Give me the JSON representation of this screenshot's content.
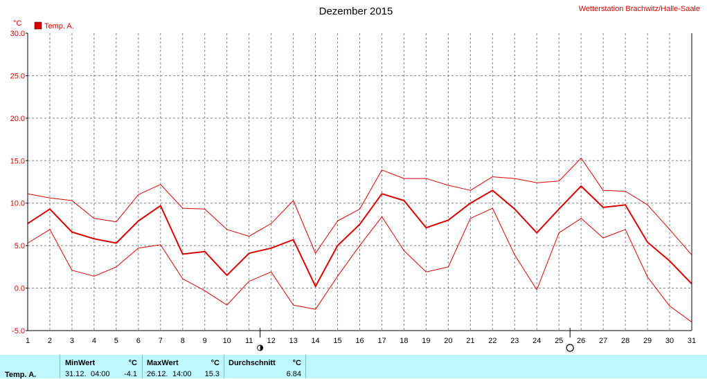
{
  "chart_data": {
    "type": "line",
    "title": "Dezember 2015",
    "station": "Wetterstation Brachwitz/Halle-Saale",
    "ylabel": "°C",
    "xlim": [
      1,
      31
    ],
    "ylim": [
      -5,
      30
    ],
    "y_ticks": [
      "30.0",
      "25.0",
      "20.0",
      "15.0",
      "10.0",
      "5.0",
      "0.0",
      "-5.0"
    ],
    "x_ticks": [
      "1",
      "2",
      "3",
      "4",
      "5",
      "6",
      "7",
      "8",
      "9",
      "10",
      "11",
      "12",
      "13",
      "14",
      "15",
      "16",
      "17",
      "18",
      "19",
      "20",
      "21",
      "22",
      "23",
      "24",
      "25",
      "26",
      "27",
      "28",
      "29",
      "30",
      "31"
    ],
    "grid": true,
    "legend": {
      "label": "Temp. A.",
      "position": "top-left"
    },
    "colors": {
      "series": "#dd0000",
      "footer_bg": "#bff7ff",
      "axis": "#000000",
      "grid": "#808080"
    },
    "moon_phases": [
      {
        "day": 11.5,
        "icon": "half-moon-icon"
      },
      {
        "day": 25.5,
        "icon": "full-moon-icon"
      }
    ],
    "series": [
      {
        "name": "Temp. A.",
        "role": "mean",
        "x": [
          1,
          2,
          3,
          4,
          5,
          6,
          7,
          8,
          9,
          10,
          11,
          12,
          13,
          14,
          15,
          16,
          17,
          18,
          19,
          20,
          21,
          22,
          23,
          24,
          25,
          26,
          27,
          28,
          29,
          30,
          31
        ],
        "values": [
          7.6,
          9.3,
          6.6,
          5.8,
          5.3,
          7.9,
          9.7,
          4.0,
          4.3,
          1.5,
          4.1,
          4.7,
          5.7,
          0.2,
          5.0,
          7.5,
          11.1,
          10.3,
          7.1,
          8.0,
          10.0,
          11.5,
          9.3,
          6.5,
          9.3,
          12.0,
          9.5,
          9.8,
          5.4,
          3.2,
          0.5
        ]
      },
      {
        "role": "max",
        "x": [
          1,
          2,
          3,
          4,
          5,
          6,
          7,
          8,
          9,
          10,
          11,
          12,
          13,
          14,
          15,
          16,
          17,
          18,
          19,
          20,
          21,
          22,
          23,
          24,
          25,
          26,
          27,
          28,
          29,
          30,
          31
        ],
        "values": [
          11.1,
          10.6,
          10.3,
          8.2,
          7.8,
          11.0,
          12.2,
          9.4,
          9.3,
          6.9,
          6.1,
          7.6,
          10.3,
          4.1,
          7.9,
          9.3,
          13.9,
          12.9,
          12.9,
          12.1,
          11.5,
          13.1,
          12.9,
          12.4,
          12.6,
          15.3,
          11.5,
          11.4,
          9.8,
          6.9,
          3.9
        ]
      },
      {
        "role": "min",
        "x": [
          1,
          2,
          3,
          4,
          5,
          6,
          7,
          8,
          9,
          10,
          11,
          12,
          13,
          14,
          15,
          16,
          17,
          18,
          19,
          20,
          21,
          22,
          23,
          24,
          25,
          26,
          27,
          28,
          29,
          30,
          31
        ],
        "values": [
          5.3,
          6.9,
          2.1,
          1.4,
          2.5,
          4.7,
          5.1,
          1.1,
          -0.3,
          -2.0,
          0.8,
          1.9,
          -2.0,
          -2.5,
          1.4,
          5.0,
          8.4,
          4.4,
          1.9,
          2.5,
          8.2,
          9.4,
          3.9,
          -0.2,
          6.5,
          8.2,
          5.9,
          6.9,
          1.3,
          -2.1,
          -4.0
        ]
      }
    ]
  },
  "footer": {
    "row_label": "Temp. A.",
    "min": {
      "header": "MinWert",
      "unit": "°C",
      "date": "31.12.",
      "time": "04:00",
      "value": "-4.1"
    },
    "max": {
      "header": "MaxWert",
      "unit": "°C",
      "date": "26.12.",
      "time": "14:00",
      "value": "15.3"
    },
    "avg": {
      "header": "Durchschnitt",
      "unit": "°C",
      "value": "6.84"
    }
  }
}
